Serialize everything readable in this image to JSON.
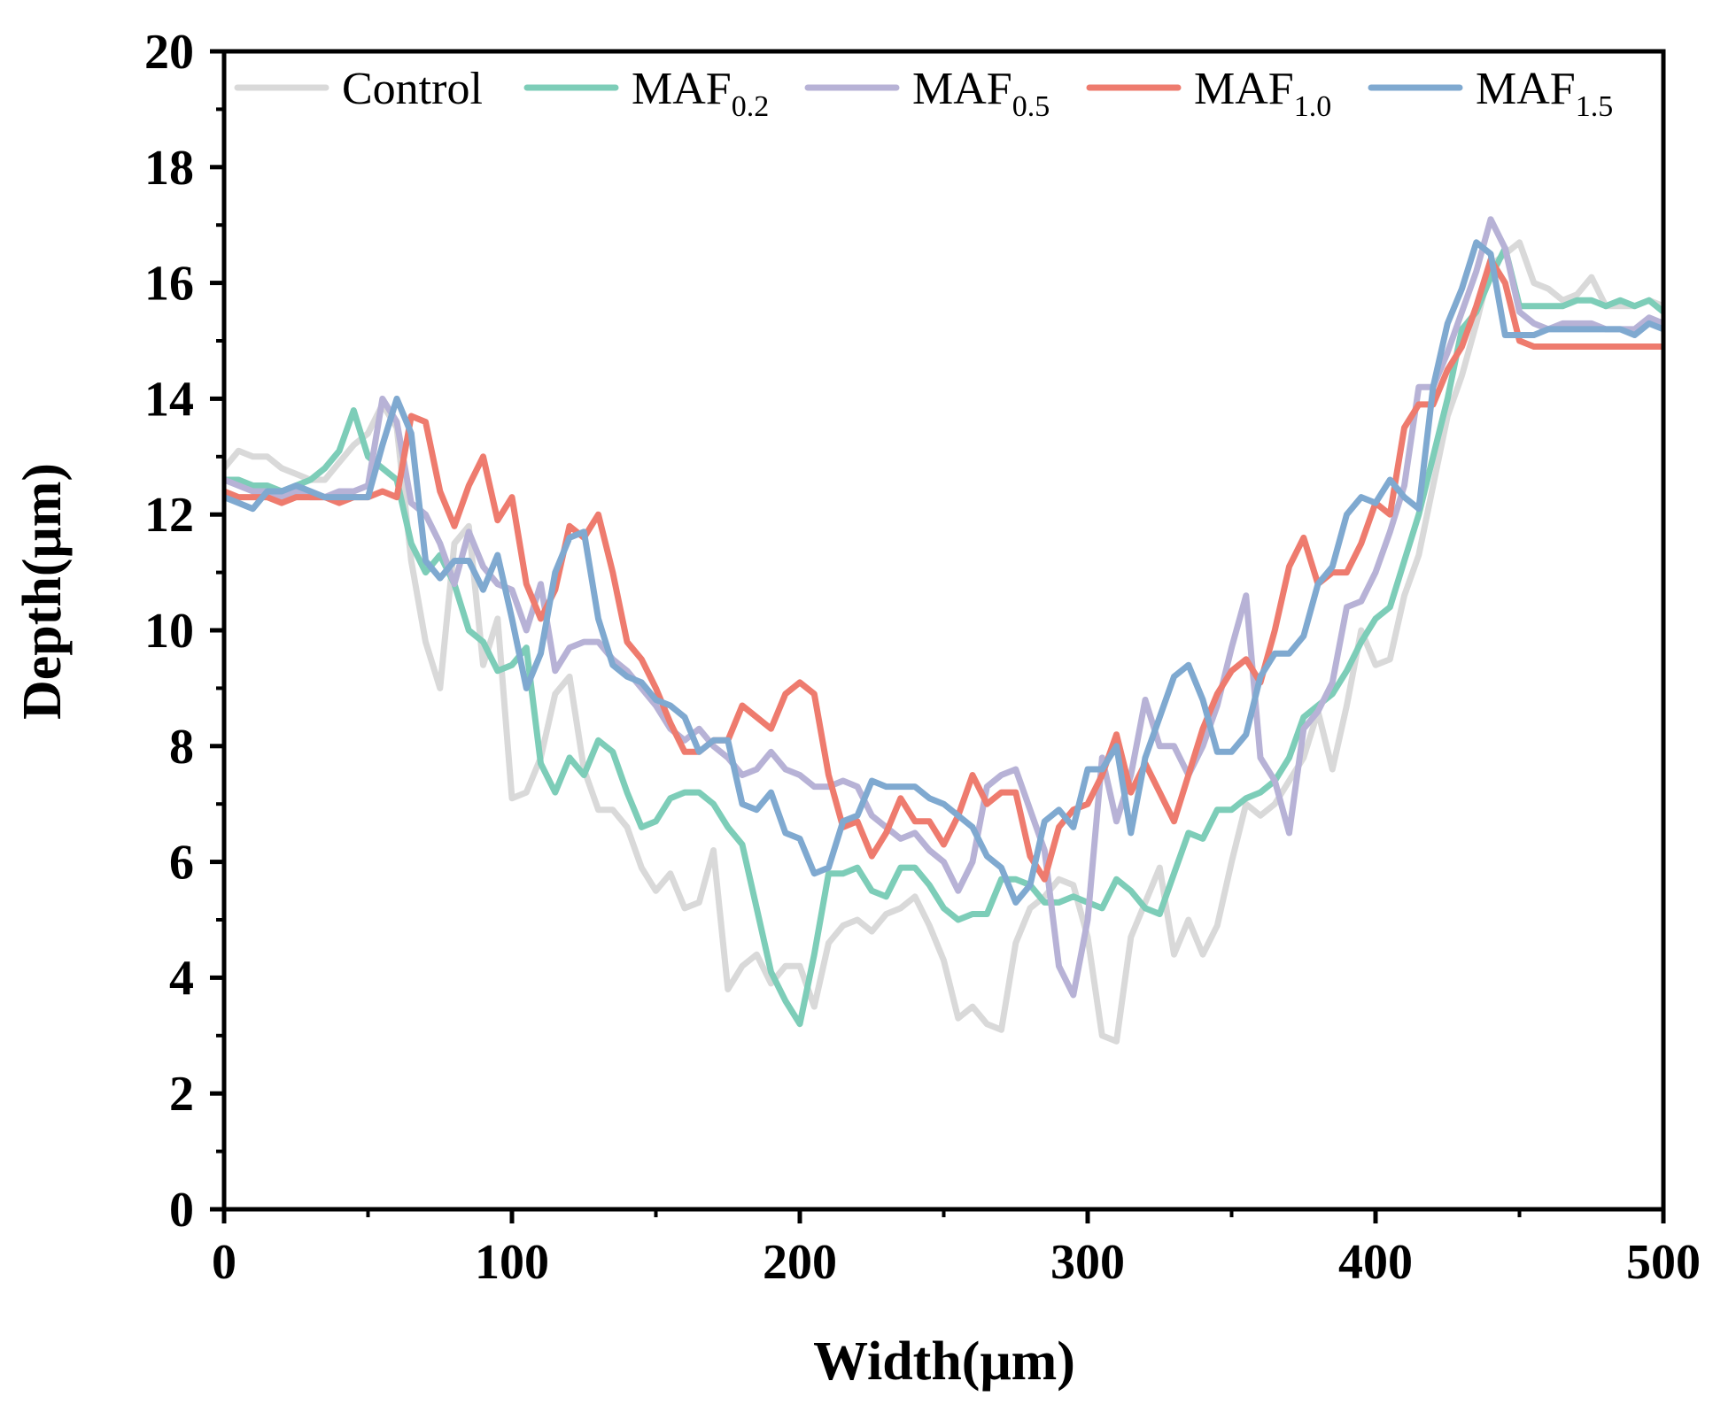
{
  "chart_data": {
    "type": "line",
    "xlabel": "Width(μm)",
    "ylabel": "Depth(μm)",
    "xlim": [
      0,
      500
    ],
    "ylim": [
      0,
      20
    ],
    "x_ticks": [
      0,
      100,
      200,
      300,
      400,
      500
    ],
    "y_ticks": [
      0,
      2,
      4,
      6,
      8,
      10,
      12,
      14,
      16,
      18,
      20
    ],
    "x_tick_labels": [
      "0",
      "100",
      "200",
      "300",
      "400",
      "500"
    ],
    "y_tick_labels": [
      "0",
      "2",
      "4",
      "6",
      "8",
      "10",
      "12",
      "14",
      "16",
      "18",
      "20"
    ],
    "grid": false,
    "legend_position": "top",
    "series": [
      {
        "name": "Control",
        "label_main": "Control",
        "label_sub": "",
        "color": "#d9d9d9",
        "x": [
          0,
          5,
          10,
          15,
          20,
          25,
          30,
          35,
          40,
          45,
          50,
          55,
          60,
          65,
          70,
          75,
          80,
          85,
          90,
          95,
          100,
          105,
          110,
          115,
          120,
          125,
          130,
          135,
          140,
          145,
          150,
          155,
          160,
          165,
          170,
          175,
          180,
          185,
          190,
          195,
          200,
          205,
          210,
          215,
          220,
          225,
          230,
          235,
          240,
          245,
          250,
          255,
          260,
          265,
          270,
          275,
          280,
          285,
          290,
          295,
          300,
          305,
          310,
          315,
          320,
          325,
          330,
          335,
          340,
          345,
          350,
          355,
          360,
          365,
          370,
          375,
          380,
          385,
          390,
          395,
          400,
          405,
          410,
          415,
          420,
          425,
          430,
          435,
          440,
          445,
          450,
          455,
          460,
          465,
          470,
          475,
          480,
          485,
          490,
          495,
          500
        ],
        "values": [
          12.8,
          13.1,
          13.0,
          13.0,
          12.8,
          12.7,
          12.6,
          12.6,
          12.9,
          13.2,
          13.4,
          13.9,
          13.5,
          11.2,
          9.8,
          9.0,
          11.5,
          11.8,
          9.4,
          10.2,
          7.1,
          7.2,
          7.8,
          8.9,
          9.2,
          7.6,
          6.9,
          6.9,
          6.6,
          5.9,
          5.5,
          5.8,
          5.2,
          5.3,
          6.2,
          3.8,
          4.2,
          4.4,
          3.9,
          4.2,
          4.2,
          3.5,
          4.6,
          4.9,
          5.0,
          4.8,
          5.1,
          5.2,
          5.4,
          4.9,
          4.3,
          3.3,
          3.5,
          3.2,
          3.1,
          4.6,
          5.2,
          5.4,
          5.7,
          5.6,
          4.7,
          3.0,
          2.9,
          4.7,
          5.3,
          5.9,
          4.4,
          5.0,
          4.4,
          4.9,
          6.0,
          7.0,
          6.8,
          7.0,
          7.4,
          7.8,
          8.6,
          7.6,
          8.7,
          10.0,
          9.4,
          9.5,
          10.6,
          11.3,
          12.5,
          13.7,
          14.4,
          15.3,
          16.3,
          16.5,
          16.7,
          16.0,
          15.9,
          15.7,
          15.8,
          16.1,
          15.6,
          15.6,
          15.6,
          15.7,
          15.6
        ]
      },
      {
        "name": "MAF0.2",
        "label_main": "MAF",
        "label_sub": "0.2",
        "color": "#7dcdb8",
        "x": [
          0,
          5,
          10,
          15,
          20,
          25,
          30,
          35,
          40,
          45,
          50,
          55,
          60,
          65,
          70,
          75,
          80,
          85,
          90,
          95,
          100,
          105,
          110,
          115,
          120,
          125,
          130,
          135,
          140,
          145,
          150,
          155,
          160,
          165,
          170,
          175,
          180,
          185,
          190,
          195,
          200,
          205,
          210,
          215,
          220,
          225,
          230,
          235,
          240,
          245,
          250,
          255,
          260,
          265,
          270,
          275,
          280,
          285,
          290,
          295,
          300,
          305,
          310,
          315,
          320,
          325,
          330,
          335,
          340,
          345,
          350,
          355,
          360,
          365,
          370,
          375,
          380,
          385,
          390,
          395,
          400,
          405,
          410,
          415,
          420,
          425,
          430,
          435,
          440,
          445,
          450,
          455,
          460,
          465,
          470,
          475,
          480,
          485,
          490,
          495,
          500
        ],
        "values": [
          12.6,
          12.6,
          12.5,
          12.5,
          12.4,
          12.5,
          12.6,
          12.8,
          13.1,
          13.8,
          13.0,
          12.8,
          12.6,
          11.5,
          11.0,
          11.3,
          10.8,
          10.0,
          9.8,
          9.3,
          9.4,
          9.7,
          7.7,
          7.2,
          7.8,
          7.5,
          8.1,
          7.9,
          7.2,
          6.6,
          6.7,
          7.1,
          7.2,
          7.2,
          7.0,
          6.6,
          6.3,
          5.2,
          4.1,
          3.6,
          3.2,
          4.4,
          5.8,
          5.8,
          5.9,
          5.5,
          5.4,
          5.9,
          5.9,
          5.6,
          5.2,
          5.0,
          5.1,
          5.1,
          5.7,
          5.7,
          5.6,
          5.3,
          5.3,
          5.4,
          5.3,
          5.2,
          5.7,
          5.5,
          5.2,
          5.1,
          5.8,
          6.5,
          6.4,
          6.9,
          6.9,
          7.1,
          7.2,
          7.4,
          7.8,
          8.5,
          8.7,
          8.9,
          9.3,
          9.8,
          10.2,
          10.4,
          11.2,
          12.0,
          13.0,
          14.0,
          15.2,
          15.5,
          16.1,
          16.6,
          15.6,
          15.6,
          15.6,
          15.6,
          15.7,
          15.7,
          15.6,
          15.7,
          15.6,
          15.7,
          15.5
        ]
      },
      {
        "name": "MAF0.5",
        "label_main": "MAF",
        "label_sub": "0.5",
        "color": "#b7b2d6",
        "x": [
          0,
          5,
          10,
          15,
          20,
          25,
          30,
          35,
          40,
          45,
          50,
          55,
          60,
          65,
          70,
          75,
          80,
          85,
          90,
          95,
          100,
          105,
          110,
          115,
          120,
          125,
          130,
          135,
          140,
          145,
          150,
          155,
          160,
          165,
          170,
          175,
          180,
          185,
          190,
          195,
          200,
          205,
          210,
          215,
          220,
          225,
          230,
          235,
          240,
          245,
          250,
          255,
          260,
          265,
          270,
          275,
          280,
          285,
          290,
          295,
          300,
          305,
          310,
          315,
          320,
          325,
          330,
          335,
          340,
          345,
          350,
          355,
          360,
          365,
          370,
          375,
          380,
          385,
          390,
          395,
          400,
          405,
          410,
          415,
          420,
          425,
          430,
          435,
          440,
          445,
          450,
          455,
          460,
          465,
          470,
          475,
          480,
          485,
          490,
          495,
          500
        ],
        "values": [
          12.6,
          12.5,
          12.4,
          12.4,
          12.3,
          12.4,
          12.3,
          12.3,
          12.4,
          12.4,
          12.5,
          14.0,
          13.6,
          12.2,
          12.0,
          11.5,
          10.8,
          11.7,
          11.1,
          10.8,
          10.7,
          10.0,
          10.8,
          9.3,
          9.7,
          9.8,
          9.8,
          9.5,
          9.3,
          9.0,
          8.7,
          8.3,
          8.1,
          8.3,
          8.0,
          7.8,
          7.5,
          7.6,
          7.9,
          7.6,
          7.5,
          7.3,
          7.3,
          7.4,
          7.3,
          6.8,
          6.6,
          6.4,
          6.5,
          6.2,
          6.0,
          5.5,
          6.0,
          7.3,
          7.5,
          7.6,
          6.9,
          6.2,
          4.2,
          3.7,
          5.0,
          7.8,
          6.7,
          7.5,
          8.8,
          8.0,
          8.0,
          7.5,
          8.0,
          8.7,
          9.7,
          10.6,
          7.8,
          7.4,
          6.5,
          8.3,
          8.6,
          9.1,
          10.4,
          10.5,
          11.0,
          11.7,
          12.5,
          14.2,
          14.2,
          14.8,
          15.5,
          16.2,
          17.1,
          16.6,
          15.5,
          15.3,
          15.2,
          15.3,
          15.3,
          15.3,
          15.2,
          15.2,
          15.2,
          15.4,
          15.3
        ]
      },
      {
        "name": "MAF1.0",
        "label_main": "MAF",
        "label_sub": "1.0",
        "color": "#ee7b6e",
        "x": [
          0,
          5,
          10,
          15,
          20,
          25,
          30,
          35,
          40,
          45,
          50,
          55,
          60,
          65,
          70,
          75,
          80,
          85,
          90,
          95,
          100,
          105,
          110,
          115,
          120,
          125,
          130,
          135,
          140,
          145,
          150,
          155,
          160,
          165,
          170,
          175,
          180,
          185,
          190,
          195,
          200,
          205,
          210,
          215,
          220,
          225,
          230,
          235,
          240,
          245,
          250,
          255,
          260,
          265,
          270,
          275,
          280,
          285,
          290,
          295,
          300,
          305,
          310,
          315,
          320,
          325,
          330,
          335,
          340,
          345,
          350,
          355,
          360,
          365,
          370,
          375,
          380,
          385,
          390,
          395,
          400,
          405,
          410,
          415,
          420,
          425,
          430,
          435,
          440,
          445,
          450,
          455,
          460,
          465,
          470,
          475,
          480,
          485,
          490,
          495,
          500
        ],
        "values": [
          12.4,
          12.3,
          12.3,
          12.3,
          12.2,
          12.3,
          12.3,
          12.3,
          12.2,
          12.3,
          12.3,
          12.4,
          12.3,
          13.7,
          13.6,
          12.4,
          11.8,
          12.5,
          13.0,
          11.9,
          12.3,
          10.8,
          10.2,
          10.7,
          11.8,
          11.6,
          12.0,
          11.0,
          9.8,
          9.5,
          9.0,
          8.4,
          7.9,
          7.9,
          8.1,
          8.1,
          8.7,
          8.5,
          8.3,
          8.9,
          9.1,
          8.9,
          7.5,
          6.6,
          6.7,
          6.1,
          6.5,
          7.1,
          6.7,
          6.7,
          6.3,
          6.8,
          7.5,
          7.0,
          7.2,
          7.2,
          6.1,
          5.7,
          6.6,
          6.9,
          7.0,
          7.5,
          8.2,
          7.2,
          7.7,
          7.2,
          6.7,
          7.5,
          8.3,
          8.9,
          9.3,
          9.5,
          9.1,
          10.0,
          11.1,
          11.6,
          10.8,
          11.0,
          11.0,
          11.5,
          12.2,
          12.0,
          13.5,
          13.9,
          13.9,
          14.5,
          14.9,
          15.6,
          16.4,
          16.0,
          15.0,
          14.9,
          14.9,
          14.9,
          14.9,
          14.9,
          14.9,
          14.9,
          14.9,
          14.9,
          14.9
        ]
      },
      {
        "name": "MAF1.5",
        "label_main": "MAF",
        "label_sub": "1.5",
        "color": "#7fa9d0",
        "x": [
          0,
          5,
          10,
          15,
          20,
          25,
          30,
          35,
          40,
          45,
          50,
          55,
          60,
          65,
          70,
          75,
          80,
          85,
          90,
          95,
          100,
          105,
          110,
          115,
          120,
          125,
          130,
          135,
          140,
          145,
          150,
          155,
          160,
          165,
          170,
          175,
          180,
          185,
          190,
          195,
          200,
          205,
          210,
          215,
          220,
          225,
          230,
          235,
          240,
          245,
          250,
          255,
          260,
          265,
          270,
          275,
          280,
          285,
          290,
          295,
          300,
          305,
          310,
          315,
          320,
          325,
          330,
          335,
          340,
          345,
          350,
          355,
          360,
          365,
          370,
          375,
          380,
          385,
          390,
          395,
          400,
          405,
          410,
          415,
          420,
          425,
          430,
          435,
          440,
          445,
          450,
          455,
          460,
          465,
          470,
          475,
          480,
          485,
          490,
          495,
          500
        ],
        "values": [
          12.3,
          12.2,
          12.1,
          12.4,
          12.4,
          12.5,
          12.4,
          12.3,
          12.3,
          12.3,
          12.3,
          13.2,
          14.0,
          13.4,
          11.2,
          10.9,
          11.2,
          11.2,
          10.7,
          11.3,
          10.2,
          9.0,
          9.6,
          11.0,
          11.6,
          11.7,
          10.2,
          9.4,
          9.2,
          9.1,
          8.8,
          8.7,
          8.5,
          7.9,
          8.1,
          8.1,
          7.0,
          6.9,
          7.2,
          6.5,
          6.4,
          5.8,
          5.9,
          6.7,
          6.8,
          7.4,
          7.3,
          7.3,
          7.3,
          7.1,
          7.0,
          6.8,
          6.6,
          6.1,
          5.9,
          5.3,
          5.6,
          6.7,
          6.9,
          6.6,
          7.6,
          7.6,
          8.0,
          6.5,
          7.8,
          8.5,
          9.2,
          9.4,
          8.8,
          7.9,
          7.9,
          8.2,
          9.2,
          9.6,
          9.6,
          9.9,
          10.8,
          11.1,
          12.0,
          12.3,
          12.2,
          12.6,
          12.3,
          12.1,
          14.2,
          15.3,
          15.9,
          16.7,
          16.5,
          15.1,
          15.1,
          15.1,
          15.2,
          15.2,
          15.2,
          15.2,
          15.2,
          15.2,
          15.1,
          15.3,
          15.2
        ]
      }
    ]
  }
}
